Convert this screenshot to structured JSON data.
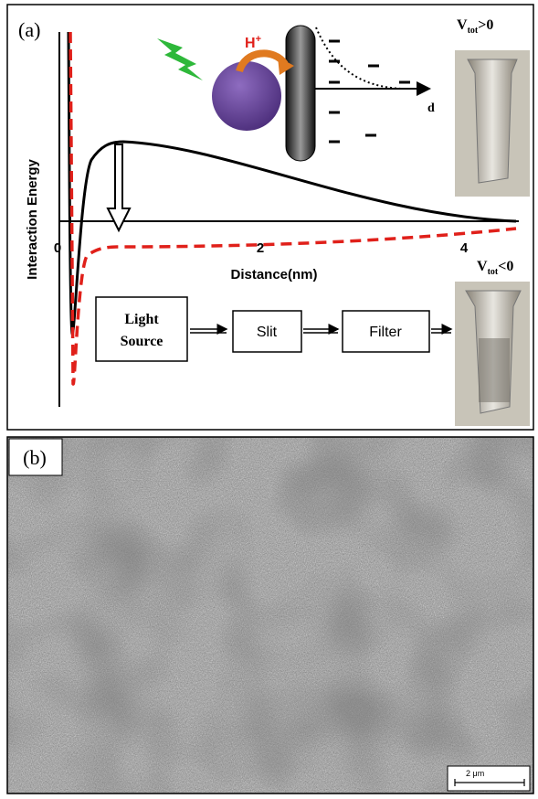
{
  "panel_a": {
    "label": "(a)",
    "y_axis_label": "Interaction Energy",
    "x_axis_label": "Distance(nm)",
    "x_ticks": [
      "0",
      "2",
      "4"
    ],
    "proton": {
      "main": "H",
      "sup": "+"
    },
    "axis_d": "d",
    "vial_top": {
      "main": "V",
      "sub": "tot",
      "rest": ">0"
    },
    "vial_bottom": {
      "main": "V",
      "sub": "tot",
      "rest": "<0"
    },
    "flow": {
      "light_line1": "Light",
      "light_line2": "Source",
      "slit": "Slit",
      "filter": "Filter"
    }
  },
  "panel_b": {
    "label": "(b)",
    "scale_bar": "2 μm"
  }
}
